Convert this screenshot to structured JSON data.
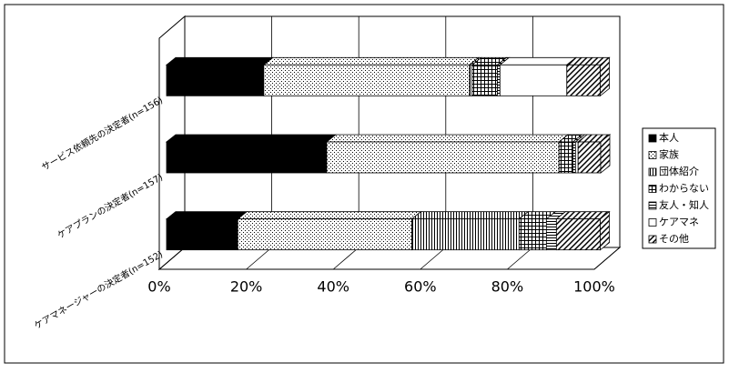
{
  "chart_data": {
    "type": "stacked-bar-3d-horizontal",
    "categories": [
      "サービス依頼先の決定者(n=156)",
      "ケアプランの決定者(n=157)",
      "ケアマネージャーの決定者(n=152)"
    ],
    "series": [
      {
        "name": "本人",
        "color": "#000000",
        "pattern": "solid",
        "values": [
          22.4,
          36.9,
          16.4
        ]
      },
      {
        "name": "家族",
        "color": "#ffffff",
        "pattern": "dots",
        "values": [
          47.4,
          53.5,
          40.1
        ]
      },
      {
        "name": "団体紹介",
        "color": "#ffffff",
        "pattern": "vertical",
        "values": [
          0.6,
          0,
          24.7
        ]
      },
      {
        "name": "わからない",
        "color": "#ffffff",
        "pattern": "grid",
        "values": [
          5.8,
          3.2,
          6.3
        ]
      },
      {
        "name": "友人・知人",
        "color": "#ffffff",
        "pattern": "horizontal",
        "values": [
          0.6,
          0.6,
          2.3
        ]
      },
      {
        "name": "ケアマネ",
        "color": "#ffffff",
        "pattern": "none",
        "values": [
          15.4,
          0.6,
          0
        ]
      },
      {
        "name": "その他",
        "color": "#ffffff",
        "pattern": "diagonal",
        "values": [
          7.7,
          5.2,
          10.1
        ]
      }
    ],
    "xlim": [
      0,
      100
    ],
    "xticks": [
      {
        "value": 0,
        "label": "0%"
      },
      {
        "value": 20,
        "label": "20%"
      },
      {
        "value": 40,
        "label": "40%"
      },
      {
        "value": 60,
        "label": "60%"
      },
      {
        "value": 80,
        "label": "80%"
      },
      {
        "value": 100,
        "label": "100%"
      }
    ],
    "grid": true,
    "legend": "right"
  }
}
